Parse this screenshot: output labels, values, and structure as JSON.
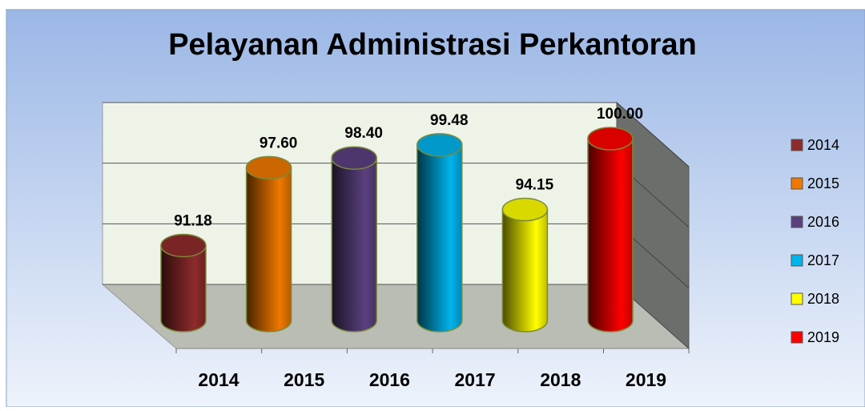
{
  "chart_data": {
    "type": "bar3d",
    "title": "Pelayanan Administrasi Perkantoran",
    "categories": [
      "2014",
      "2015",
      "2016",
      "2017",
      "2018",
      "2019"
    ],
    "values": [
      91.18,
      97.6,
      98.4,
      99.48,
      94.15,
      100.0
    ],
    "value_labels": [
      "91.18",
      "97.60",
      "98.40",
      "99.48",
      "94.15",
      "100.00"
    ],
    "colors": [
      "#8e2b2b",
      "#f07800",
      "#5b4080",
      "#00b4ec",
      "#ffff00",
      "#ff0000"
    ],
    "ylim": [
      85,
      100
    ],
    "yticks": [
      85,
      90,
      95,
      100
    ],
    "grid": true,
    "legend": "right"
  }
}
